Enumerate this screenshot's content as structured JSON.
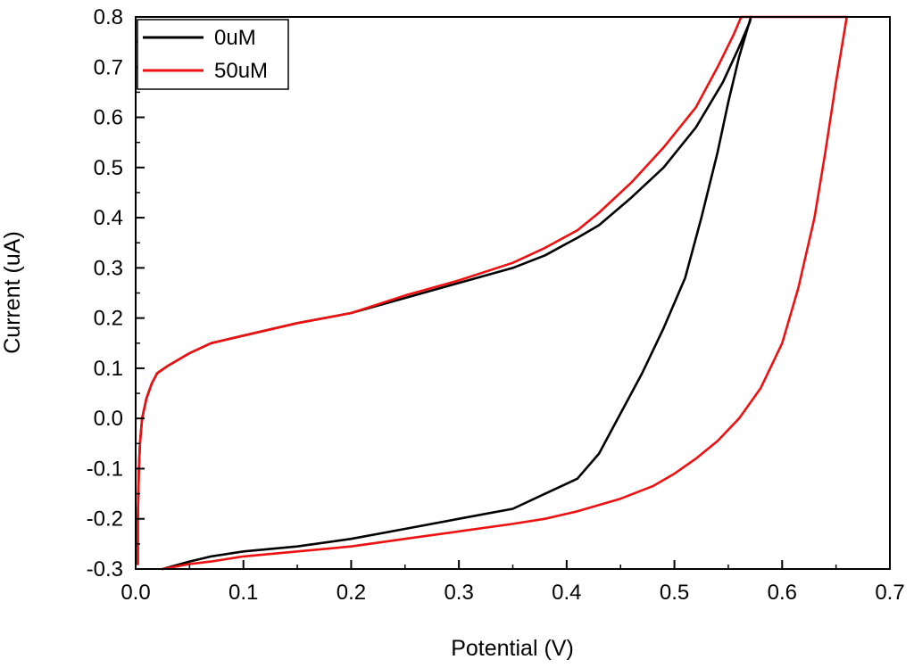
{
  "chart_data": {
    "type": "line",
    "title": "",
    "xlabel": "Potential (V)",
    "ylabel": "Current (uA)",
    "xlim": [
      0.0,
      0.7
    ],
    "ylim": [
      -0.3,
      0.8
    ],
    "xticks": [
      "0.0",
      "0.1",
      "0.2",
      "0.3",
      "0.4",
      "0.5",
      "0.6",
      "0.7"
    ],
    "yticks": [
      "-0.3",
      "-0.2",
      "-0.1",
      "0.0",
      "0.1",
      "0.2",
      "0.3",
      "0.4",
      "0.5",
      "0.6",
      "0.7",
      "0.8"
    ],
    "legend_position": "top-left",
    "series": [
      {
        "name": "0uM",
        "color": "#000000",
        "x": [
          0.002,
          0.002,
          0.003,
          0.004,
          0.006,
          0.01,
          0.015,
          0.02,
          0.03,
          0.05,
          0.07,
          0.1,
          0.15,
          0.2,
          0.25,
          0.3,
          0.35,
          0.38,
          0.41,
          0.43,
          0.46,
          0.49,
          0.52,
          0.545,
          0.56,
          0.57,
          0.571,
          0.56,
          0.55,
          0.54,
          0.525,
          0.51,
          0.49,
          0.47,
          0.45,
          0.43,
          0.41,
          0.38,
          0.35,
          0.3,
          0.25,
          0.2,
          0.15,
          0.1,
          0.07,
          0.05,
          0.025
        ],
        "y": [
          -0.29,
          -0.2,
          -0.1,
          -0.05,
          0.0,
          0.04,
          0.07,
          0.09,
          0.105,
          0.13,
          0.15,
          0.165,
          0.19,
          0.21,
          0.24,
          0.27,
          0.3,
          0.325,
          0.36,
          0.385,
          0.44,
          0.5,
          0.58,
          0.67,
          0.74,
          0.79,
          0.8,
          0.72,
          0.63,
          0.53,
          0.4,
          0.28,
          0.18,
          0.09,
          0.01,
          -0.07,
          -0.12,
          -0.15,
          -0.18,
          -0.2,
          -0.22,
          -0.24,
          -0.255,
          -0.265,
          -0.275,
          -0.285,
          -0.3
        ]
      },
      {
        "name": "50uM",
        "color": "#ee1111",
        "x": [
          0.002,
          0.002,
          0.003,
          0.004,
          0.006,
          0.01,
          0.015,
          0.02,
          0.03,
          0.05,
          0.07,
          0.1,
          0.15,
          0.2,
          0.25,
          0.3,
          0.35,
          0.38,
          0.41,
          0.43,
          0.46,
          0.49,
          0.52,
          0.54,
          0.555,
          0.562,
          0.66,
          0.65,
          0.64,
          0.63,
          0.615,
          0.6,
          0.58,
          0.56,
          0.54,
          0.52,
          0.5,
          0.48,
          0.45,
          0.41,
          0.38,
          0.35,
          0.3,
          0.25,
          0.2,
          0.15,
          0.1,
          0.07,
          0.05,
          0.025
        ],
        "y": [
          -0.29,
          -0.2,
          -0.1,
          -0.05,
          0.0,
          0.04,
          0.07,
          0.09,
          0.105,
          0.13,
          0.15,
          0.165,
          0.19,
          0.21,
          0.245,
          0.275,
          0.31,
          0.34,
          0.375,
          0.41,
          0.47,
          0.54,
          0.62,
          0.7,
          0.765,
          0.8,
          0.8,
          0.67,
          0.53,
          0.4,
          0.26,
          0.15,
          0.06,
          0.0,
          -0.045,
          -0.08,
          -0.11,
          -0.135,
          -0.16,
          -0.185,
          -0.2,
          -0.21,
          -0.225,
          -0.24,
          -0.255,
          -0.265,
          -0.275,
          -0.285,
          -0.29,
          -0.3
        ]
      }
    ]
  }
}
